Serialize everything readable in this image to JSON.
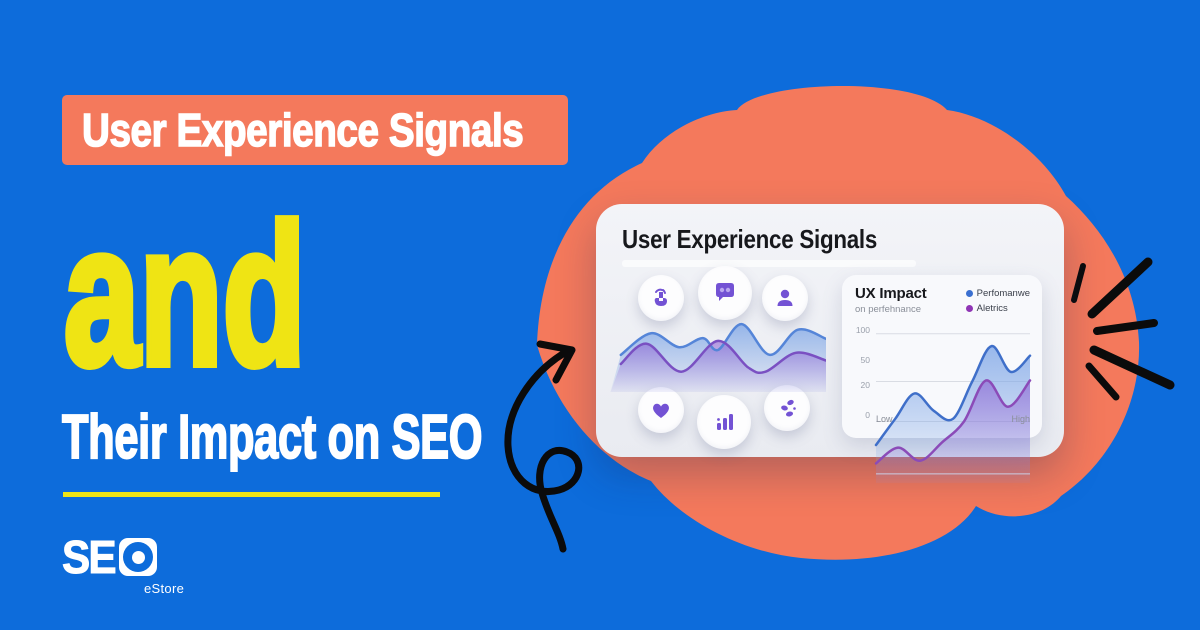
{
  "canvas": {
    "bg_color": "#0d6cdb",
    "blob_color": "#f4795c",
    "accent_yellow": "#efe414"
  },
  "left_panel": {
    "tag_label": "User Experience Signals",
    "headline": "and",
    "subheadline": "Their Impact on SEO",
    "logo": {
      "brand_prefix": "SE",
      "lens_icon": "lens-o-icon",
      "subtext": "eStore"
    }
  },
  "card": {
    "title": "User Experience Signals",
    "icon_color": "#7352d4",
    "icon_names": [
      "tap-gesture-icon",
      "chat-bubble-icon",
      "user-icon",
      "heart-icon",
      "bar-chart-icon",
      "engagement-dots-icon"
    ]
  },
  "chart_data": [
    {
      "id": "main-wave",
      "type": "line",
      "title": "",
      "legend_position": "none",
      "series": [
        {
          "name": "blue-wave",
          "color": "#5585d8",
          "points": [
            [
              5,
              53
            ],
            [
              19,
              84
            ],
            [
              32,
              64
            ],
            [
              43,
              77
            ],
            [
              50,
              60
            ],
            [
              61,
              97
            ],
            [
              74,
              53
            ],
            [
              87,
              89
            ],
            [
              100,
              76
            ]
          ]
        },
        {
          "name": "purple-wave",
          "color": "#7a50c2",
          "points": [
            [
              5,
              40
            ],
            [
              17,
              69
            ],
            [
              33,
              29
            ],
            [
              50,
              73
            ],
            [
              64,
              35
            ],
            [
              72,
              29
            ],
            [
              86,
              56
            ],
            [
              100,
              45
            ]
          ]
        }
      ]
    },
    {
      "id": "ux-impact",
      "type": "area",
      "title": "UX Impact",
      "subtitle": "on perfehnance",
      "legend": [
        {
          "label": "Perfomanwe",
          "color": "#3a6fd0"
        },
        {
          "label": "Aletrics",
          "color": "#8f35b5"
        }
      ],
      "y_ticks": [
        {
          "label": "100",
          "pos": 5
        },
        {
          "label": "50",
          "pos": 36
        },
        {
          "label": "20",
          "pos": 62
        },
        {
          "label": "0",
          "pos": 96
        }
      ],
      "x_labels": [
        "Low",
        "High"
      ],
      "xlabel": "",
      "ylabel": "",
      "series": [
        {
          "name": "performance",
          "color": "#3f6fc9",
          "values": [
            11,
            22,
            41,
            28,
            22,
            50,
            87,
            60,
            77
          ]
        },
        {
          "name": "metrics",
          "color": "#8b4bb8",
          "values": [
            4,
            10,
            5,
            12,
            20,
            51,
            31,
            51
          ]
        }
      ]
    }
  ]
}
